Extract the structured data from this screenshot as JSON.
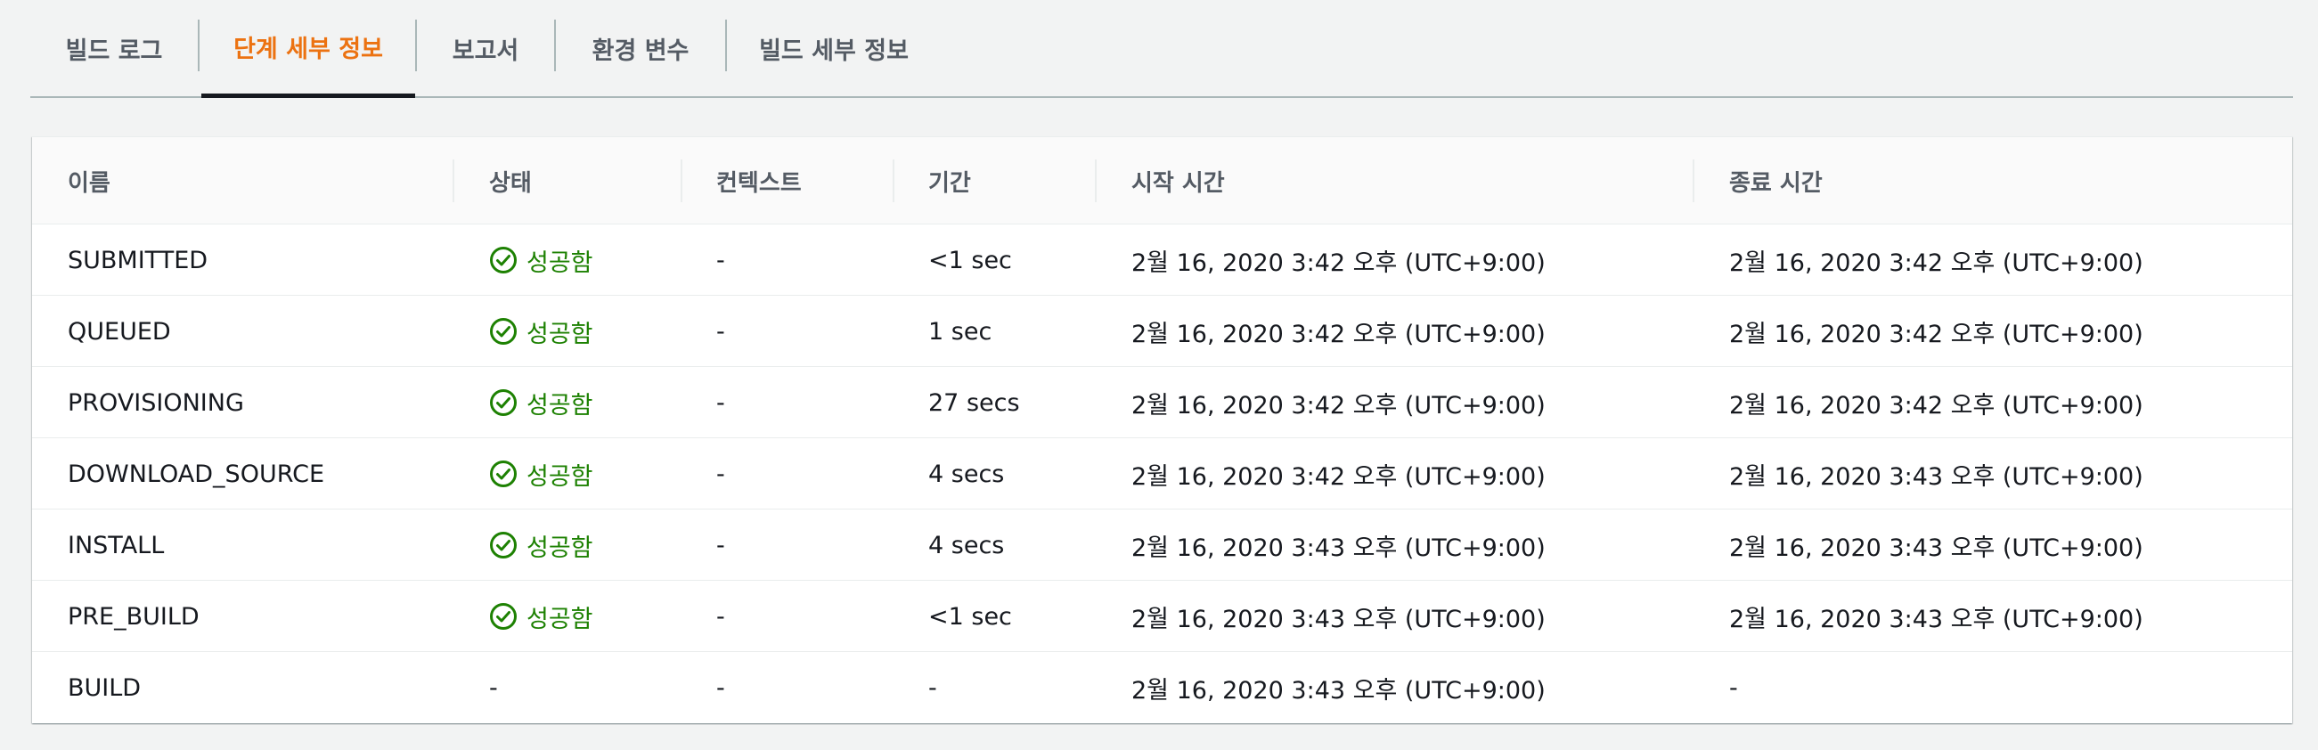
{
  "tabs": [
    {
      "label": "빌드 로그",
      "active": false
    },
    {
      "label": "단계 세부 정보",
      "active": true
    },
    {
      "label": "보고서",
      "active": false
    },
    {
      "label": "환경 변수",
      "active": false
    },
    {
      "label": "빌드 세부 정보",
      "active": false
    }
  ],
  "colors": {
    "accent": "#ec7211",
    "success": "#1d8102",
    "text": "#16191f",
    "muted": "#545b64",
    "background": "#f2f3f3"
  },
  "table": {
    "columns": [
      "이름",
      "상태",
      "컨텍스트",
      "기간",
      "시작 시간",
      "종료 시간"
    ],
    "rows": [
      {
        "name": "SUBMITTED",
        "status": "성공함",
        "status_icon": "check-circle-icon",
        "context": "-",
        "duration": "<1 sec",
        "start": "2월 16, 2020 3:42 오후 (UTC+9:00)",
        "end": "2월 16, 2020 3:42 오후 (UTC+9:00)"
      },
      {
        "name": "QUEUED",
        "status": "성공함",
        "status_icon": "check-circle-icon",
        "context": "-",
        "duration": "1 sec",
        "start": "2월 16, 2020 3:42 오후 (UTC+9:00)",
        "end": "2월 16, 2020 3:42 오후 (UTC+9:00)"
      },
      {
        "name": "PROVISIONING",
        "status": "성공함",
        "status_icon": "check-circle-icon",
        "context": "-",
        "duration": "27 secs",
        "start": "2월 16, 2020 3:42 오후 (UTC+9:00)",
        "end": "2월 16, 2020 3:42 오후 (UTC+9:00)"
      },
      {
        "name": "DOWNLOAD_SOURCE",
        "status": "성공함",
        "status_icon": "check-circle-icon",
        "context": "-",
        "duration": "4 secs",
        "start": "2월 16, 2020 3:42 오후 (UTC+9:00)",
        "end": "2월 16, 2020 3:43 오후 (UTC+9:00)"
      },
      {
        "name": "INSTALL",
        "status": "성공함",
        "status_icon": "check-circle-icon",
        "context": "-",
        "duration": "4 secs",
        "start": "2월 16, 2020 3:43 오후 (UTC+9:00)",
        "end": "2월 16, 2020 3:43 오후 (UTC+9:00)"
      },
      {
        "name": "PRE_BUILD",
        "status": "성공함",
        "status_icon": "check-circle-icon",
        "context": "-",
        "duration": "<1 sec",
        "start": "2월 16, 2020 3:43 오후 (UTC+9:00)",
        "end": "2월 16, 2020 3:43 오후 (UTC+9:00)"
      },
      {
        "name": "BUILD",
        "status": "-",
        "status_icon": "",
        "context": "-",
        "duration": "-",
        "start": "2월 16, 2020 3:43 오후 (UTC+9:00)",
        "end": "-"
      }
    ]
  }
}
